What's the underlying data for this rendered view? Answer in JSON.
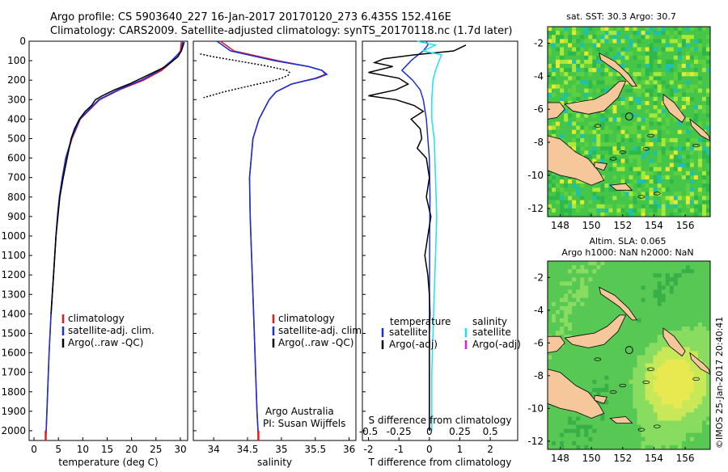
{
  "header": {
    "line1": "Argo profile: CS 5903640_227 16-Jan-2017 20170120_273 6.435S 152.416E",
    "line2": "Climatology: CARS2009. Satellite-adjusted climatology: synTS_20170118.nc (1.7d later)"
  },
  "colors": {
    "climatology": "#e8191d",
    "satellite": "#1a2fd6",
    "argo": "#000000",
    "sat_salinity": "#1fe0f0",
    "argo_salinity_adj": "#e020e0",
    "land": "#f5c79a"
  },
  "chart_data": [
    {
      "type": "line",
      "xlabel": "temperature (deg C)",
      "ylabel": "",
      "xlim": [
        -1,
        31.5
      ],
      "ylim": [
        2050,
        0
      ],
      "xticks": [
        0,
        5,
        10,
        15,
        20,
        25,
        30
      ],
      "yticks": [
        0,
        100,
        200,
        300,
        400,
        500,
        600,
        700,
        800,
        900,
        1000,
        1100,
        1200,
        1300,
        1400,
        1500,
        1600,
        1700,
        1800,
        1900,
        2000
      ],
      "legend": [
        "climatology",
        "satellite-adj. clim.",
        "Argo(..raw -QC)"
      ],
      "series": [
        {
          "name": "climatology",
          "depth": [
            0,
            50,
            100,
            150,
            200,
            250,
            300,
            400,
            500,
            600,
            700,
            800,
            900,
            1000,
            1200,
            1400,
            1600,
            1800,
            2000,
            2030
          ],
          "values": [
            30.2,
            30,
            28.5,
            26.2,
            22.5,
            17.5,
            13.5,
            9.5,
            7.8,
            6.6,
            5.8,
            5.2,
            4.8,
            4.5,
            4.0,
            3.5,
            3.1,
            2.8,
            2.5,
            2.4
          ]
        },
        {
          "name": "satellite-adj. clim.",
          "depth": [
            0,
            50,
            100,
            150,
            200,
            250,
            300,
            400,
            500,
            600,
            700,
            800,
            900,
            1000,
            1200,
            1400,
            1600,
            1800,
            2000,
            2030
          ],
          "values": [
            30.5,
            30.2,
            28.2,
            25.8,
            22,
            17.2,
            13.3,
            9.4,
            7.7,
            6.5,
            5.8,
            5.2,
            4.8,
            4.5,
            4.0,
            3.5,
            3.1,
            2.8,
            2.5,
            2.4
          ]
        },
        {
          "name": "Argo(..raw -QC)",
          "depth": [
            5,
            20,
            50,
            80,
            100,
            130,
            160,
            190,
            220,
            250,
            280,
            300,
            330,
            360,
            400,
            450,
            500,
            550,
            600,
            700,
            800,
            900,
            1000,
            1200,
            1400
          ],
          "values": [
            30.8,
            30.6,
            30.2,
            29.5,
            28.5,
            27,
            24.5,
            22,
            19.5,
            16.5,
            14,
            12.6,
            11.8,
            10.5,
            9.3,
            8.3,
            7.6,
            7.2,
            6.8,
            6,
            5.3,
            4.9,
            4.5,
            4,
            3.5
          ]
        }
      ]
    },
    {
      "type": "line",
      "xlabel": "salinity",
      "ylabel": "",
      "xlim": [
        33.7,
        36.1
      ],
      "ylim": [
        2050,
        0
      ],
      "xticks": [
        34,
        34.5,
        35,
        35.5,
        36
      ],
      "legend": [
        "climatology",
        "satellite-adj. clim.",
        "Argo(..raw -QC)"
      ],
      "annotations": [
        "Argo Australia",
        "PI: Susan Wijffels"
      ],
      "series": [
        {
          "name": "climatology",
          "depth": [
            0,
            50,
            100,
            130,
            150,
            170,
            190,
            220,
            260,
            300,
            400,
            500,
            700,
            900,
            1100,
            1300,
            1500,
            1700,
            1900,
            2030
          ],
          "values": [
            34.1,
            34.3,
            34.95,
            35.4,
            35.6,
            35.65,
            35.5,
            35.15,
            34.92,
            34.82,
            34.67,
            34.58,
            34.53,
            34.54,
            34.56,
            34.58,
            34.6,
            34.62,
            34.64,
            34.66
          ]
        },
        {
          "name": "satellite-adj. clim.",
          "depth": [
            0,
            50,
            100,
            130,
            150,
            170,
            190,
            220,
            260,
            300,
            400,
            500,
            700,
            900,
            1100,
            1300,
            1500,
            1700,
            1900,
            2030
          ],
          "values": [
            34.05,
            34.25,
            34.9,
            35.4,
            35.6,
            35.67,
            35.52,
            35.15,
            34.92,
            34.82,
            34.67,
            34.58,
            34.53,
            34.54,
            34.56,
            34.58,
            34.6,
            34.62,
            34.64,
            34.66
          ]
        },
        {
          "name": "Argo(..raw -QC)",
          "depth": [
            65,
            80,
            95,
            110,
            125,
            140,
            150,
            160,
            175,
            190,
            205,
            220,
            240,
            260,
            280,
            290
          ],
          "values": [
            33.8,
            34.0,
            34.25,
            34.5,
            34.75,
            34.95,
            35.08,
            35.12,
            35.1,
            35.0,
            34.85,
            34.65,
            34.4,
            34.15,
            33.95,
            33.85
          ]
        }
      ]
    },
    {
      "type": "line",
      "xlabel": "T difference from climatology",
      "ylabel": "",
      "xlim": [
        -2.2,
        2.9
      ],
      "ylim": [
        2050,
        0
      ],
      "xticks": [
        -2,
        -1,
        0,
        1,
        2
      ],
      "xticks_top": [
        -0.5,
        -0.25,
        0,
        0.25,
        0.5
      ],
      "xlabel_top": "S difference from climatology",
      "legend_temperature_title": "temperature",
      "legend_salinity_title": "salinity",
      "legend": [
        "satellite",
        "Argo(-adj)",
        "satellite",
        "Argo(-adj)"
      ],
      "series": [
        {
          "name": "satellite",
          "depth": [
            0,
            20,
            50,
            80,
            100,
            150,
            200,
            250,
            300,
            400,
            500,
            600,
            800,
            1000,
            1500,
            2000
          ],
          "values": [
            -0.1,
            -0.05,
            -0.2,
            -0.45,
            -0.6,
            -0.9,
            -0.55,
            -0.3,
            -0.2,
            -0.1,
            -0.05,
            0,
            0.02,
            0.01,
            0,
            0
          ]
        },
        {
          "name": "Argo(-adj)",
          "depth": [
            20,
            50,
            70,
            90,
            110,
            130,
            160,
            190,
            220,
            250,
            280,
            300,
            330,
            360,
            400,
            450,
            500,
            550,
            600,
            700,
            800,
            900,
            1000,
            1050,
            1100,
            1200,
            1300,
            1400,
            1500,
            1600,
            1800,
            2000
          ],
          "values": [
            1.2,
            0.8,
            -0.5,
            -1.5,
            -1.8,
            -1.2,
            -2.0,
            -1.0,
            -0.7,
            -1.1,
            -2.0,
            -1.1,
            -0.5,
            -0.2,
            -0.6,
            -0.3,
            -0.25,
            -0.4,
            -0.1,
            0.0,
            -0.1,
            0.05,
            -0.05,
            -0.1,
            -0.15,
            -0.05,
            0,
            0.02,
            0.0,
            0.0,
            0.0,
            0.0
          ]
        },
        {
          "name": "satellite",
          "depth": [
            0,
            20,
            50,
            70,
            100,
            150,
            200,
            300,
            400,
            500,
            700,
            900,
            1100,
            1300,
            1500,
            1700,
            2000
          ],
          "values": [
            -0.1,
            0.05,
            -0.05,
            0.1,
            0.08,
            0.05,
            0.03,
            0.02,
            0.02,
            0.04,
            0.05,
            0.06,
            0.05,
            0.04,
            0.03,
            0.02,
            0.02
          ]
        },
        {
          "name": "Argo(-adj)",
          "depth": [],
          "values": []
        }
      ]
    }
  ],
  "maps": {
    "sst": {
      "title": "sat. SST: 30.3 Argo: 30.7",
      "xticks": [
        "148",
        "150",
        "152",
        "154",
        "156"
      ],
      "yticks": [
        "-2",
        "-4",
        "-6",
        "-8",
        "-10",
        "-12"
      ]
    },
    "sla": {
      "title1": "Altim. SLA: 0.065",
      "title2": "Argo h1000: NaN h2000: NaN",
      "xticks": [
        "148",
        "150",
        "152",
        "154",
        "156"
      ],
      "yticks": [
        "-2",
        "-4",
        "-6",
        "-8",
        "-10",
        "-12"
      ]
    }
  },
  "footer": {
    "credit": "©IMOS 25-Jan-2017 20:40:41"
  }
}
